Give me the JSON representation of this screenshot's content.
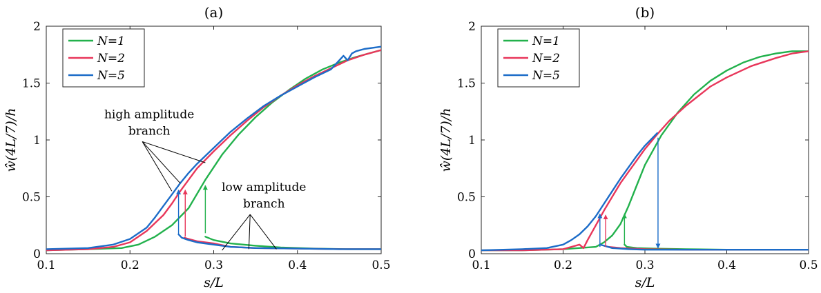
{
  "chart_data": [
    {
      "type": "line",
      "title": "(a)",
      "xlabel": "s/L",
      "ylabel": "ŵ(4L/7)/h",
      "xlim": [
        0.1,
        0.5
      ],
      "ylim": [
        0,
        2
      ],
      "xticks": [
        "0.1",
        "0.2",
        "0.3",
        "0.4",
        "0.5"
      ],
      "yticks": [
        "0",
        "0.5",
        "1",
        "1.5",
        "2"
      ],
      "grid": false,
      "legend_position": "top-left",
      "series": [
        {
          "name": "N=1",
          "color": "#22b14c",
          "segments": [
            {
              "x": [
                0.1,
                0.15,
                0.19,
                0.21,
                0.23,
                0.25,
                0.27,
                0.29,
                0.31,
                0.33,
                0.35,
                0.37,
                0.39,
                0.41,
                0.43,
                0.45,
                0.47,
                0.49,
                0.5
              ],
              "y": [
                0.03,
                0.04,
                0.05,
                0.08,
                0.15,
                0.25,
                0.4,
                0.65,
                0.87,
                1.05,
                1.2,
                1.33,
                1.44,
                1.54,
                1.62,
                1.68,
                1.73,
                1.77,
                1.79
              ]
            },
            {
              "x": [
                0.29,
                0.3,
                0.32,
                0.35,
                0.38,
                0.42,
                0.46,
                0.5
              ],
              "y": [
                0.15,
                0.12,
                0.09,
                0.07,
                0.055,
                0.045,
                0.04,
                0.04
              ]
            }
          ]
        },
        {
          "name": "N=2",
          "color": "#e8365a",
          "segments": [
            {
              "x": [
                0.1,
                0.15,
                0.18,
                0.2,
                0.22,
                0.24,
                0.25,
                0.26,
                0.27,
                0.28,
                0.3,
                0.32,
                0.34,
                0.36,
                0.38,
                0.4,
                0.42,
                0.44,
                0.46,
                0.48,
                0.5
              ],
              "y": [
                0.03,
                0.04,
                0.06,
                0.1,
                0.2,
                0.34,
                0.44,
                0.55,
                0.65,
                0.75,
                0.9,
                1.04,
                1.17,
                1.29,
                1.39,
                1.48,
                1.56,
                1.63,
                1.7,
                1.75,
                1.79
              ]
            },
            {
              "x": [
                0.265,
                0.27,
                0.28,
                0.3,
                0.32,
                0.35,
                0.4,
                0.45,
                0.5
              ],
              "y": [
                0.14,
                0.13,
                0.11,
                0.09,
                0.06,
                0.05,
                0.045,
                0.04,
                0.04
              ]
            }
          ]
        },
        {
          "name": "N=5",
          "color": "#1c6cc8",
          "segments": [
            {
              "x": [
                0.1,
                0.15,
                0.18,
                0.2,
                0.22,
                0.23,
                0.24,
                0.25,
                0.26,
                0.27,
                0.28,
                0.3,
                0.32,
                0.34,
                0.36,
                0.38,
                0.4,
                0.42,
                0.44,
                0.45,
                0.455,
                0.46,
                0.465,
                0.47,
                0.48,
                0.5
              ],
              "y": [
                0.04,
                0.05,
                0.08,
                0.13,
                0.23,
                0.32,
                0.42,
                0.52,
                0.62,
                0.71,
                0.79,
                0.93,
                1.07,
                1.19,
                1.3,
                1.39,
                1.47,
                1.55,
                1.62,
                1.7,
                1.74,
                1.7,
                1.76,
                1.78,
                1.8,
                1.82
              ]
            },
            {
              "x": [
                0.258,
                0.262,
                0.27,
                0.28,
                0.3,
                0.32,
                0.35,
                0.4,
                0.45,
                0.5
              ],
              "y": [
                0.17,
                0.14,
                0.12,
                0.1,
                0.08,
                0.06,
                0.05,
                0.045,
                0.04,
                0.04
              ]
            }
          ]
        }
      ],
      "arrows": [
        {
          "color": "#1c6cc8",
          "x": 0.258,
          "y_from": 0.17,
          "y_to": 0.56
        },
        {
          "color": "#e8365a",
          "x": 0.266,
          "y_from": 0.15,
          "y_to": 0.56
        },
        {
          "color": "#22b14c",
          "x": 0.29,
          "y_from": 0.18,
          "y_to": 0.6
        }
      ],
      "annotations": [
        {
          "lines": [
            "high amplitude",
            "branch"
          ],
          "anchor_x": 0.223,
          "anchor_y": 1.07,
          "pointers": [
            [
              0.25,
              0.55
            ],
            [
              0.26,
              0.62
            ],
            [
              0.29,
              0.8
            ]
          ]
        },
        {
          "lines": [
            "low amplitude",
            "branch"
          ],
          "anchor_x": 0.36,
          "anchor_y": 0.43,
          "pointers": [
            [
              0.31,
              0.03
            ],
            [
              0.342,
              0.04
            ],
            [
              0.375,
              0.04
            ]
          ]
        }
      ]
    },
    {
      "type": "line",
      "title": "(b)",
      "xlabel": "s/L",
      "ylabel": "ŵ(4L/7)/h",
      "xlim": [
        0.1,
        0.5
      ],
      "ylim": [
        0,
        2
      ],
      "xticks": [
        "0.1",
        "0.2",
        "0.3",
        "0.4",
        "0.5"
      ],
      "yticks": [
        "0",
        "0.5",
        "1",
        "1.5",
        "2"
      ],
      "grid": false,
      "legend_position": "top-left",
      "series": [
        {
          "name": "N=1",
          "color": "#22b14c",
          "segments": [
            {
              "x": [
                0.1,
                0.15,
                0.2,
                0.24,
                0.25,
                0.26,
                0.27,
                0.28,
                0.29,
                0.3,
                0.32,
                0.34,
                0.36,
                0.38,
                0.4,
                0.42,
                0.44,
                0.46,
                0.48,
                0.5
              ],
              "y": [
                0.03,
                0.03,
                0.04,
                0.06,
                0.1,
                0.16,
                0.26,
                0.42,
                0.6,
                0.78,
                1.04,
                1.24,
                1.4,
                1.52,
                1.61,
                1.68,
                1.73,
                1.76,
                1.78,
                1.78
              ]
            },
            {
              "x": [
                0.275,
                0.278,
                0.29,
                0.31,
                0.35,
                0.4,
                0.45,
                0.5
              ],
              "y": [
                0.08,
                0.06,
                0.05,
                0.045,
                0.04,
                0.035,
                0.035,
                0.035
              ]
            }
          ]
        },
        {
          "name": "N=2",
          "color": "#e8365a",
          "segments": [
            {
              "x": [
                0.1,
                0.15,
                0.2,
                0.21,
                0.22,
                0.225,
                0.23,
                0.24,
                0.25,
                0.26,
                0.27,
                0.28,
                0.3,
                0.315,
                0.33,
                0.35,
                0.38,
                0.4,
                0.43,
                0.46,
                0.48,
                0.5
              ],
              "y": [
                0.03,
                0.03,
                0.04,
                0.06,
                0.08,
                0.05,
                0.12,
                0.25,
                0.38,
                0.5,
                0.62,
                0.72,
                0.92,
                1.05,
                1.17,
                1.3,
                1.47,
                1.55,
                1.65,
                1.72,
                1.76,
                1.78
              ]
            },
            {
              "x": [
                0.25,
                0.255,
                0.27,
                0.3,
                0.35,
                0.4,
                0.45,
                0.5
              ],
              "y": [
                0.07,
                0.06,
                0.05,
                0.04,
                0.035,
                0.035,
                0.035,
                0.035
              ]
            }
          ]
        },
        {
          "name": "N=5",
          "color": "#1c6cc8",
          "segments": [
            {
              "x": [
                0.1,
                0.15,
                0.18,
                0.2,
                0.21,
                0.22,
                0.23,
                0.24,
                0.25,
                0.26,
                0.27,
                0.28,
                0.29,
                0.3,
                0.315
              ],
              "y": [
                0.03,
                0.04,
                0.05,
                0.08,
                0.12,
                0.17,
                0.24,
                0.33,
                0.44,
                0.55,
                0.66,
                0.76,
                0.86,
                0.95,
                1.06
              ]
            },
            {
              "x": [
                0.245,
                0.25,
                0.26,
                0.28,
                0.3,
                0.32,
                0.35,
                0.4,
                0.45,
                0.5
              ],
              "y": [
                0.08,
                0.07,
                0.05,
                0.04,
                0.035,
                0.035,
                0.035,
                0.035,
                0.035,
                0.035
              ]
            }
          ]
        }
      ],
      "arrows": [
        {
          "color": "#1c6cc8",
          "x": 0.245,
          "y_from": 0.06,
          "y_to": 0.35
        },
        {
          "color": "#e8365a",
          "x": 0.252,
          "y_from": 0.06,
          "y_to": 0.34
        },
        {
          "color": "#22b14c",
          "x": 0.275,
          "y_from": 0.08,
          "y_to": 0.35
        },
        {
          "color": "#1c6cc8",
          "x": 0.316,
          "y_from": 1.02,
          "y_to": 0.05
        }
      ],
      "annotations": []
    }
  ]
}
